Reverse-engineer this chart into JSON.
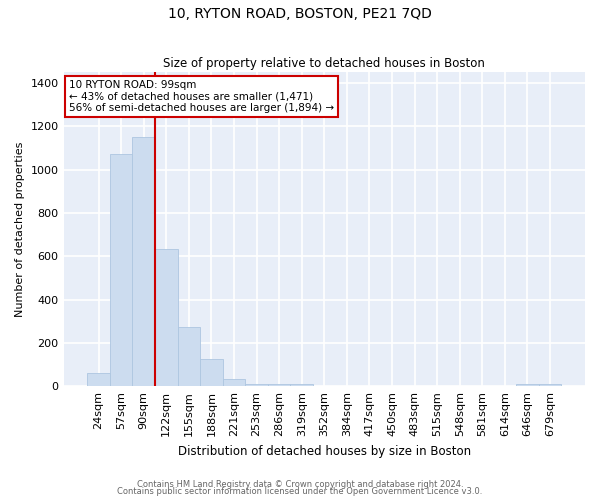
{
  "title": "10, RYTON ROAD, BOSTON, PE21 7QD",
  "subtitle": "Size of property relative to detached houses in Boston",
  "xlabel": "Distribution of detached houses by size in Boston",
  "ylabel": "Number of detached properties",
  "footer_line1": "Contains HM Land Registry data © Crown copyright and database right 2024.",
  "footer_line2": "Contains public sector information licensed under the Open Government Licence v3.0.",
  "annotation_line1": "10 RYTON ROAD: 99sqm",
  "annotation_line2": "← 43% of detached houses are smaller (1,471)",
  "annotation_line3": "56% of semi-detached houses are larger (1,894) →",
  "categories": [
    "24sqm",
    "57sqm",
    "90sqm",
    "122sqm",
    "155sqm",
    "188sqm",
    "221sqm",
    "253sqm",
    "286sqm",
    "319sqm",
    "352sqm",
    "384sqm",
    "417sqm",
    "450sqm",
    "483sqm",
    "515sqm",
    "548sqm",
    "581sqm",
    "614sqm",
    "646sqm",
    "679sqm"
  ],
  "values": [
    60,
    1070,
    1150,
    635,
    275,
    125,
    35,
    12,
    12,
    12,
    3,
    0,
    0,
    0,
    0,
    0,
    0,
    0,
    0,
    12,
    12
  ],
  "bar_color": "#ccdcef",
  "bar_edge_color": "#adc6e0",
  "red_line_color": "#cc0000",
  "annotation_box_color": "#cc0000",
  "background_color": "#ffffff",
  "plot_bg_color": "#e8eef8",
  "grid_color": "#ffffff",
  "ylim": [
    0,
    1450
  ],
  "yticks": [
    0,
    200,
    400,
    600,
    800,
    1000,
    1200,
    1400
  ],
  "red_line_x": 2.5
}
